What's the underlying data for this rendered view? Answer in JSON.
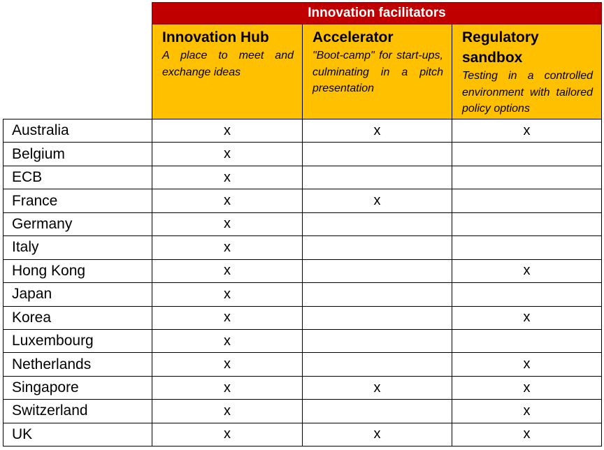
{
  "table": {
    "super_header": "Innovation facilitators",
    "columns": [
      {
        "title": "Innovation Hub",
        "description": "A place to meet and exchange ideas"
      },
      {
        "title": "Accelerator",
        "description": "\"Boot-camp\" for start-ups, culminating in a pitch presentation"
      },
      {
        "title": "Regulatory sandbox",
        "description": "Testing in a controlled environment with tailored policy options"
      }
    ],
    "rows": [
      {
        "country": "Australia",
        "marks": [
          "x",
          "x",
          "x"
        ]
      },
      {
        "country": "Belgium",
        "marks": [
          "x",
          "",
          ""
        ]
      },
      {
        "country": "ECB",
        "marks": [
          "x",
          "",
          ""
        ]
      },
      {
        "country": "France",
        "marks": [
          "x",
          "x",
          ""
        ]
      },
      {
        "country": "Germany",
        "marks": [
          "x",
          "",
          ""
        ]
      },
      {
        "country": "Italy",
        "marks": [
          "x",
          "",
          ""
        ]
      },
      {
        "country": "Hong Kong",
        "marks": [
          "x",
          "",
          "x"
        ]
      },
      {
        "country": "Japan",
        "marks": [
          "x",
          "",
          ""
        ]
      },
      {
        "country": "Korea",
        "marks": [
          "x",
          "",
          "x"
        ]
      },
      {
        "country": "Luxembourg",
        "marks": [
          "x",
          "",
          ""
        ]
      },
      {
        "country": "Netherlands",
        "marks": [
          "x",
          "",
          "x"
        ]
      },
      {
        "country": "Singapore",
        "marks": [
          "x",
          "x",
          "x"
        ]
      },
      {
        "country": "Switzerland",
        "marks": [
          "x",
          "",
          "x"
        ]
      },
      {
        "country": "UK",
        "marks": [
          "x",
          "x",
          "x"
        ]
      }
    ]
  }
}
